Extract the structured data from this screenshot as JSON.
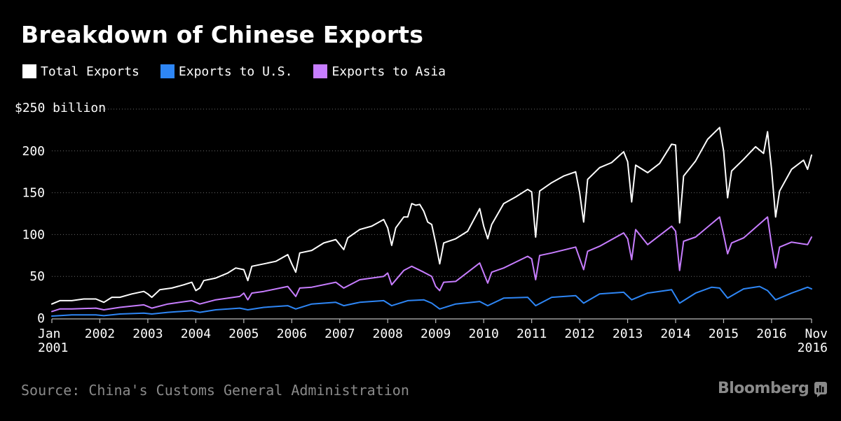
{
  "chart_data": {
    "type": "line",
    "title": "Breakdown of Chinese Exports",
    "ylabel": "$250 billion",
    "xlabel": "",
    "ylim": [
      0,
      250
    ],
    "yticks": [
      0,
      50,
      100,
      150,
      200
    ],
    "source": "Source: China's Customs General Administration",
    "brand": "Bloomberg",
    "x_start": [
      2001,
      1
    ],
    "x_end": [
      2016,
      11
    ],
    "xticks": [
      {
        "label": "Jan",
        "label2": "2001",
        "year": 2001,
        "month": 1
      },
      {
        "label": "2002",
        "year": 2002,
        "month": 1
      },
      {
        "label": "2003",
        "year": 2003,
        "month": 1
      },
      {
        "label": "2004",
        "year": 2004,
        "month": 1
      },
      {
        "label": "2005",
        "year": 2005,
        "month": 1
      },
      {
        "label": "2006",
        "year": 2006,
        "month": 1
      },
      {
        "label": "2007",
        "year": 2007,
        "month": 1
      },
      {
        "label": "2008",
        "year": 2008,
        "month": 1
      },
      {
        "label": "2009",
        "year": 2009,
        "month": 1
      },
      {
        "label": "2010",
        "year": 2010,
        "month": 1
      },
      {
        "label": "2011",
        "year": 2011,
        "month": 1
      },
      {
        "label": "2012",
        "year": 2012,
        "month": 1
      },
      {
        "label": "2013",
        "year": 2013,
        "month": 1
      },
      {
        "label": "2014",
        "year": 2014,
        "month": 1
      },
      {
        "label": "2015",
        "year": 2015,
        "month": 1
      },
      {
        "label": "2016",
        "year": 2016,
        "month": 1
      },
      {
        "label": "Nov",
        "label2": "2016",
        "year": 2016,
        "month": 11
      }
    ],
    "series": [
      {
        "name": "Total Exports",
        "color": "#ffffff",
        "points": [
          [
            2001,
            1,
            17
          ],
          [
            2001,
            3,
            21
          ],
          [
            2001,
            6,
            21
          ],
          [
            2001,
            9,
            23
          ],
          [
            2001,
            12,
            23
          ],
          [
            2002,
            1,
            21
          ],
          [
            2002,
            2,
            19
          ],
          [
            2002,
            4,
            25
          ],
          [
            2002,
            6,
            25
          ],
          [
            2002,
            9,
            29
          ],
          [
            2002,
            12,
            32
          ],
          [
            2003,
            1,
            29
          ],
          [
            2003,
            2,
            25
          ],
          [
            2003,
            4,
            34
          ],
          [
            2003,
            7,
            36
          ],
          [
            2003,
            10,
            40
          ],
          [
            2003,
            12,
            43
          ],
          [
            2004,
            1,
            33
          ],
          [
            2004,
            2,
            36
          ],
          [
            2004,
            3,
            45
          ],
          [
            2004,
            6,
            48
          ],
          [
            2004,
            9,
            54
          ],
          [
            2004,
            11,
            60
          ],
          [
            2005,
            1,
            58
          ],
          [
            2005,
            2,
            45
          ],
          [
            2005,
            3,
            62
          ],
          [
            2005,
            6,
            65
          ],
          [
            2005,
            9,
            68
          ],
          [
            2005,
            12,
            76
          ],
          [
            2006,
            1,
            65
          ],
          [
            2006,
            2,
            55
          ],
          [
            2006,
            3,
            78
          ],
          [
            2006,
            6,
            81
          ],
          [
            2006,
            9,
            90
          ],
          [
            2006,
            12,
            94
          ],
          [
            2007,
            1,
            88
          ],
          [
            2007,
            2,
            82
          ],
          [
            2007,
            3,
            96
          ],
          [
            2007,
            6,
            106
          ],
          [
            2007,
            9,
            110
          ],
          [
            2007,
            12,
            118
          ],
          [
            2008,
            1,
            108
          ],
          [
            2008,
            2,
            87
          ],
          [
            2008,
            3,
            108
          ],
          [
            2008,
            5,
            121
          ],
          [
            2008,
            6,
            121
          ],
          [
            2008,
            7,
            137
          ],
          [
            2008,
            8,
            135
          ],
          [
            2008,
            9,
            136
          ],
          [
            2008,
            10,
            128
          ],
          [
            2008,
            11,
            115
          ],
          [
            2008,
            12,
            112
          ],
          [
            2009,
            1,
            90
          ],
          [
            2009,
            2,
            65
          ],
          [
            2009,
            3,
            90
          ],
          [
            2009,
            6,
            95
          ],
          [
            2009,
            9,
            104
          ],
          [
            2009,
            12,
            131
          ],
          [
            2010,
            1,
            110
          ],
          [
            2010,
            2,
            95
          ],
          [
            2010,
            3,
            112
          ],
          [
            2010,
            6,
            137
          ],
          [
            2010,
            9,
            145
          ],
          [
            2010,
            12,
            154
          ],
          [
            2011,
            1,
            151
          ],
          [
            2011,
            2,
            97
          ],
          [
            2011,
            3,
            152
          ],
          [
            2011,
            6,
            162
          ],
          [
            2011,
            9,
            170
          ],
          [
            2011,
            12,
            175
          ],
          [
            2012,
            1,
            150
          ],
          [
            2012,
            2,
            115
          ],
          [
            2012,
            3,
            166
          ],
          [
            2012,
            6,
            180
          ],
          [
            2012,
            9,
            186
          ],
          [
            2012,
            12,
            199
          ],
          [
            2013,
            1,
            187
          ],
          [
            2013,
            2,
            139
          ],
          [
            2013,
            3,
            183
          ],
          [
            2013,
            6,
            174
          ],
          [
            2013,
            9,
            185
          ],
          [
            2013,
            12,
            208
          ],
          [
            2014,
            1,
            207
          ],
          [
            2014,
            2,
            114
          ],
          [
            2014,
            3,
            170
          ],
          [
            2014,
            6,
            188
          ],
          [
            2014,
            9,
            214
          ],
          [
            2014,
            12,
            228
          ],
          [
            2015,
            1,
            200
          ],
          [
            2015,
            2,
            144
          ],
          [
            2015,
            3,
            176
          ],
          [
            2015,
            6,
            190
          ],
          [
            2015,
            9,
            205
          ],
          [
            2015,
            11,
            197
          ],
          [
            2015,
            12,
            223
          ],
          [
            2016,
            1,
            178
          ],
          [
            2016,
            2,
            121
          ],
          [
            2016,
            3,
            152
          ],
          [
            2016,
            6,
            178
          ],
          [
            2016,
            9,
            189
          ],
          [
            2016,
            10,
            178
          ],
          [
            2016,
            11,
            195
          ]
        ]
      },
      {
        "name": "Exports to U.S.",
        "color": "#2e86f5",
        "points": [
          [
            2001,
            1,
            2.5
          ],
          [
            2001,
            6,
            4
          ],
          [
            2001,
            12,
            4
          ],
          [
            2002,
            2,
            3
          ],
          [
            2002,
            6,
            5
          ],
          [
            2002,
            12,
            6
          ],
          [
            2003,
            2,
            5
          ],
          [
            2003,
            6,
            7
          ],
          [
            2003,
            12,
            9
          ],
          [
            2004,
            2,
            7
          ],
          [
            2004,
            6,
            10
          ],
          [
            2004,
            12,
            12
          ],
          [
            2005,
            2,
            10
          ],
          [
            2005,
            6,
            13
          ],
          [
            2005,
            12,
            15
          ],
          [
            2006,
            2,
            11
          ],
          [
            2006,
            6,
            17
          ],
          [
            2006,
            12,
            19
          ],
          [
            2007,
            2,
            15
          ],
          [
            2007,
            6,
            19
          ],
          [
            2007,
            12,
            21
          ],
          [
            2008,
            2,
            15
          ],
          [
            2008,
            6,
            21
          ],
          [
            2008,
            10,
            22
          ],
          [
            2008,
            12,
            18
          ],
          [
            2009,
            2,
            11
          ],
          [
            2009,
            6,
            17
          ],
          [
            2009,
            12,
            20
          ],
          [
            2010,
            2,
            15
          ],
          [
            2010,
            6,
            24
          ],
          [
            2010,
            12,
            25
          ],
          [
            2011,
            2,
            15
          ],
          [
            2011,
            6,
            25
          ],
          [
            2011,
            12,
            27
          ],
          [
            2012,
            2,
            18
          ],
          [
            2012,
            6,
            29
          ],
          [
            2012,
            12,
            31
          ],
          [
            2013,
            2,
            22
          ],
          [
            2013,
            6,
            30
          ],
          [
            2013,
            12,
            34
          ],
          [
            2014,
            2,
            18
          ],
          [
            2014,
            6,
            30
          ],
          [
            2014,
            10,
            37
          ],
          [
            2014,
            12,
            36
          ],
          [
            2015,
            2,
            24
          ],
          [
            2015,
            6,
            35
          ],
          [
            2015,
            10,
            38
          ],
          [
            2015,
            12,
            33
          ],
          [
            2016,
            2,
            22
          ],
          [
            2016,
            6,
            30
          ],
          [
            2016,
            10,
            37
          ],
          [
            2016,
            11,
            35
          ]
        ]
      },
      {
        "name": "Exports to Asia",
        "color": "#c77dff",
        "points": [
          [
            2001,
            1,
            8
          ],
          [
            2001,
            3,
            11
          ],
          [
            2001,
            6,
            11
          ],
          [
            2001,
            12,
            12
          ],
          [
            2002,
            2,
            10
          ],
          [
            2002,
            6,
            13
          ],
          [
            2002,
            12,
            16
          ],
          [
            2003,
            2,
            12
          ],
          [
            2003,
            6,
            17
          ],
          [
            2003,
            12,
            21
          ],
          [
            2004,
            2,
            17
          ],
          [
            2004,
            6,
            22
          ],
          [
            2004,
            12,
            26
          ],
          [
            2005,
            1,
            30
          ],
          [
            2005,
            2,
            22
          ],
          [
            2005,
            3,
            30
          ],
          [
            2005,
            6,
            32
          ],
          [
            2005,
            12,
            38
          ],
          [
            2006,
            2,
            26
          ],
          [
            2006,
            3,
            36
          ],
          [
            2006,
            6,
            37
          ],
          [
            2006,
            12,
            43
          ],
          [
            2007,
            2,
            36
          ],
          [
            2007,
            6,
            46
          ],
          [
            2007,
            12,
            50
          ],
          [
            2008,
            1,
            54
          ],
          [
            2008,
            2,
            40
          ],
          [
            2008,
            5,
            57
          ],
          [
            2008,
            7,
            62
          ],
          [
            2008,
            10,
            55
          ],
          [
            2008,
            12,
            50
          ],
          [
            2009,
            1,
            38
          ],
          [
            2009,
            2,
            33
          ],
          [
            2009,
            3,
            43
          ],
          [
            2009,
            6,
            44
          ],
          [
            2009,
            12,
            66
          ],
          [
            2010,
            2,
            42
          ],
          [
            2010,
            3,
            55
          ],
          [
            2010,
            6,
            60
          ],
          [
            2010,
            12,
            74
          ],
          [
            2011,
            1,
            71
          ],
          [
            2011,
            2,
            46
          ],
          [
            2011,
            3,
            75
          ],
          [
            2011,
            6,
            78
          ],
          [
            2011,
            12,
            85
          ],
          [
            2012,
            2,
            58
          ],
          [
            2012,
            3,
            80
          ],
          [
            2012,
            6,
            86
          ],
          [
            2012,
            12,
            102
          ],
          [
            2013,
            1,
            95
          ],
          [
            2013,
            2,
            70
          ],
          [
            2013,
            3,
            106
          ],
          [
            2013,
            6,
            88
          ],
          [
            2013,
            12,
            110
          ],
          [
            2014,
            1,
            104
          ],
          [
            2014,
            2,
            57
          ],
          [
            2014,
            3,
            92
          ],
          [
            2014,
            6,
            97
          ],
          [
            2014,
            12,
            121
          ],
          [
            2015,
            1,
            100
          ],
          [
            2015,
            2,
            77
          ],
          [
            2015,
            3,
            90
          ],
          [
            2015,
            6,
            96
          ],
          [
            2015,
            12,
            121
          ],
          [
            2016,
            1,
            88
          ],
          [
            2016,
            2,
            60
          ],
          [
            2016,
            3,
            85
          ],
          [
            2016,
            6,
            91
          ],
          [
            2016,
            10,
            88
          ],
          [
            2016,
            11,
            97
          ]
        ]
      }
    ]
  }
}
